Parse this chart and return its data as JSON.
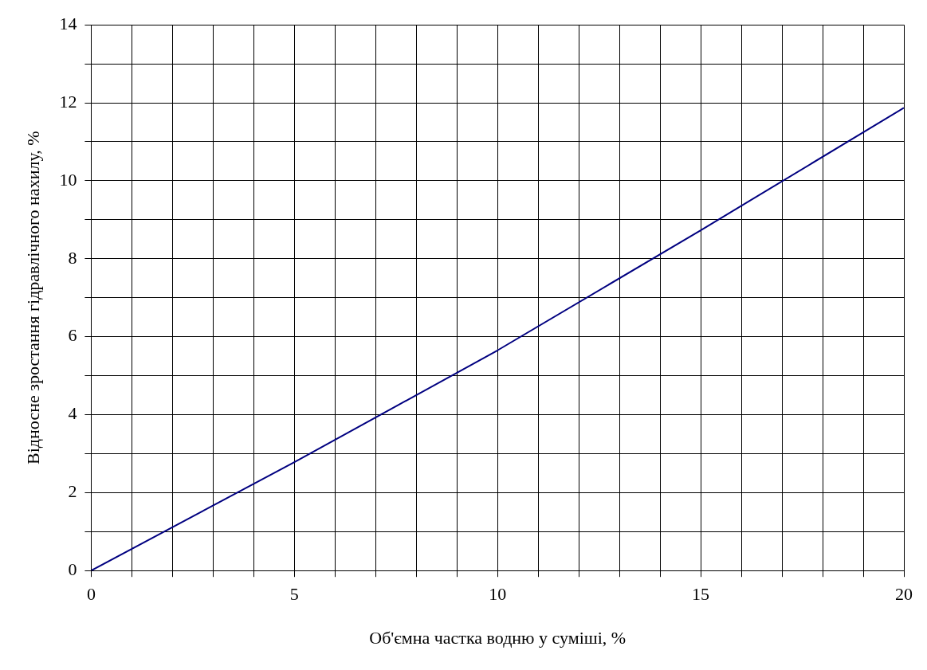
{
  "chart_data": {
    "type": "line",
    "xlabel": "Об'ємна частка водню у суміші, %",
    "ylabel": "Відносне зростання гідравлічного нахилу, %",
    "x": [
      0,
      5,
      10,
      15,
      20
    ],
    "series": [
      {
        "color": "#000080",
        "values": [
          0,
          2.78,
          5.65,
          8.73,
          11.87
        ]
      }
    ],
    "xlim": [
      0,
      20
    ],
    "ylim": [
      0,
      14
    ],
    "xticks": [
      0,
      {
        "value": 1,
        "label": null
      },
      {
        "value": 2,
        "label": null
      },
      {
        "value": 3,
        "label": null
      },
      {
        "value": 4,
        "label": null
      },
      5,
      {
        "value": 6,
        "label": null
      },
      {
        "value": 7,
        "label": null
      },
      {
        "value": 8,
        "label": null
      },
      {
        "value": 9,
        "label": null
      },
      10,
      {
        "value": 11,
        "label": null
      },
      {
        "value": 12,
        "label": null
      },
      {
        "value": 13,
        "label": null
      },
      {
        "value": 14,
        "label": null
      },
      15,
      {
        "value": 16,
        "label": null
      },
      {
        "value": 17,
        "label": null
      },
      {
        "value": 18,
        "label": null
      },
      {
        "value": 19,
        "label": null
      },
      20
    ],
    "yticks": [
      0,
      {
        "value": 1,
        "label": null
      },
      2,
      {
        "value": 3,
        "label": null
      },
      4,
      {
        "value": 5,
        "label": null
      },
      6,
      {
        "value": 7,
        "label": null
      },
      8,
      {
        "value": 9,
        "label": null
      },
      10,
      {
        "value": 11,
        "label": null
      },
      12,
      {
        "value": 13,
        "label": null
      },
      14
    ],
    "grid": true,
    "marker": "none",
    "line_style": "solid"
  }
}
